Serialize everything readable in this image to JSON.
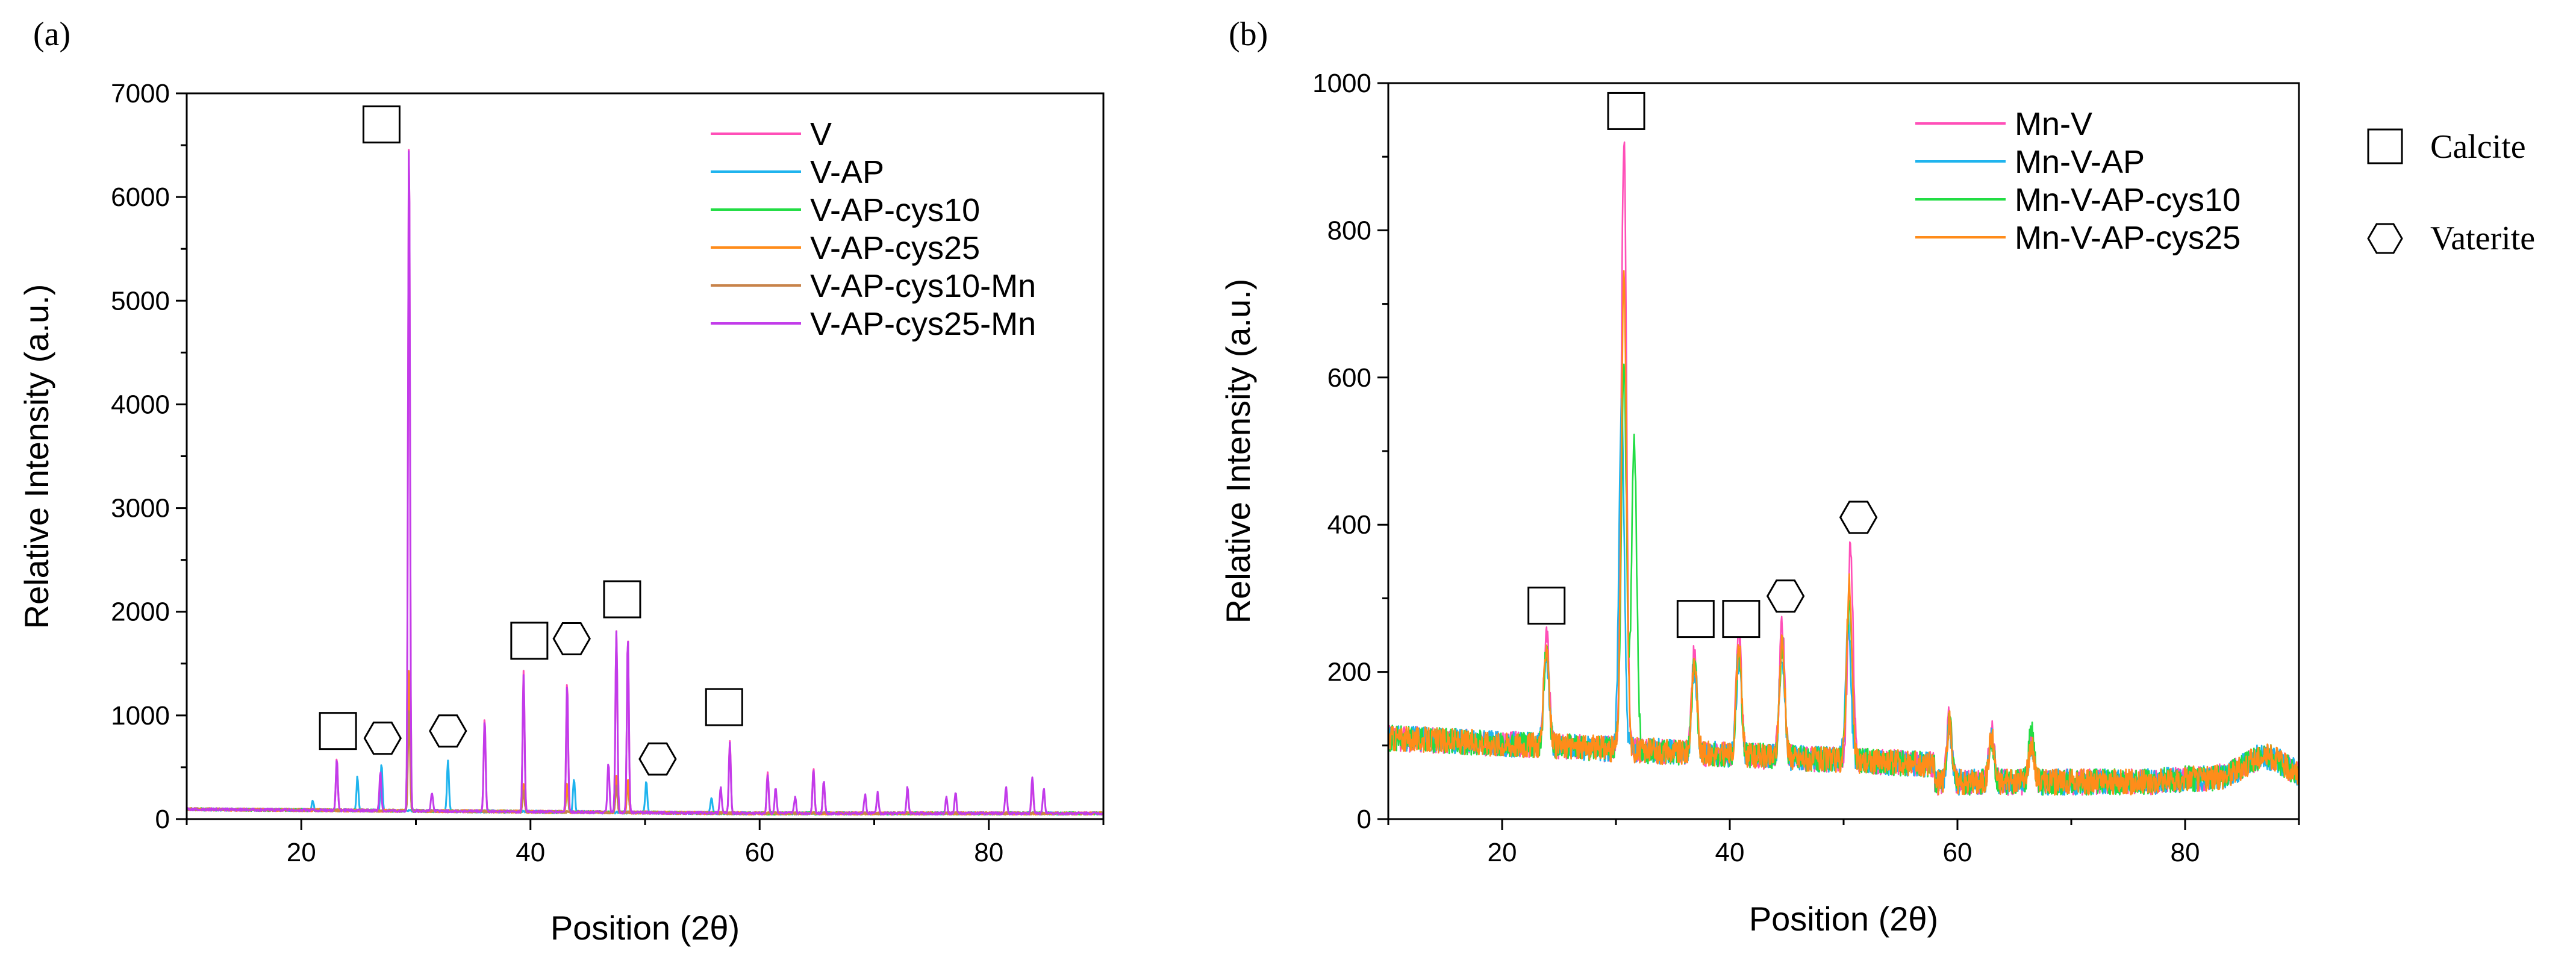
{
  "chart_data": [
    {
      "type": "line",
      "panel_label": "(a)",
      "xlabel": "Position (2θ)",
      "ylabel": "Relative Intensity (a.u.)",
      "xlim": [
        10,
        90
      ],
      "ylim": [
        0,
        7000
      ],
      "xticks": [
        20,
        40,
        60,
        80
      ],
      "yticks": [
        0,
        1000,
        2000,
        3000,
        4000,
        5000,
        6000,
        7000
      ],
      "grid": false,
      "legend_position": "top-right",
      "baseline": 100,
      "series": [
        {
          "name": "V",
          "color": "#ff4fb8",
          "peaks": [
            [
              23.1,
              500
            ],
            [
              29.4,
              6550
            ],
            [
              36.0,
              900
            ],
            [
              39.4,
              1350
            ],
            [
              43.2,
              1250
            ],
            [
              47.5,
              1750
            ],
            [
              48.5,
              1700
            ],
            [
              57.4,
              700
            ],
            [
              60.7,
              400
            ],
            [
              64.7,
              450
            ],
            [
              65.6,
              300
            ],
            [
              83.8,
              300
            ]
          ]
        },
        {
          "name": "V-AP",
          "color": "#1fb4ee",
          "peaks": [
            [
              21.0,
              100
            ],
            [
              24.9,
              330
            ],
            [
              27.0,
              450
            ],
            [
              32.8,
              480
            ],
            [
              43.8,
              330
            ],
            [
              50.1,
              300
            ],
            [
              55.8,
              150
            ]
          ]
        },
        {
          "name": "V-AP-cys10",
          "color": "#22dd44",
          "peaks": [
            [
              29.4,
              1200
            ],
            [
              39.4,
              250
            ],
            [
              43.2,
              250
            ],
            [
              47.5,
              300
            ],
            [
              48.5,
              280
            ]
          ]
        },
        {
          "name": "V-AP-cys25",
          "color": "#ff8c1a",
          "peaks": [
            [
              29.4,
              1400
            ],
            [
              39.4,
              280
            ],
            [
              43.2,
              270
            ],
            [
              47.5,
              350
            ],
            [
              48.5,
              330
            ]
          ]
        },
        {
          "name": "V-AP-cys10-Mn",
          "color": "#c8834a",
          "peaks": [
            [
              29.4,
              1000
            ],
            [
              39.4,
              200
            ],
            [
              47.5,
              250
            ]
          ]
        },
        {
          "name": "V-AP-cys25-Mn",
          "color": "#c23bea",
          "peaks": [
            [
              23.1,
              480
            ],
            [
              26.9,
              380
            ],
            [
              29.4,
              6550
            ],
            [
              31.4,
              180
            ],
            [
              36.0,
              880
            ],
            [
              39.4,
              1320
            ],
            [
              43.2,
              1220
            ],
            [
              46.8,
              480
            ],
            [
              47.5,
              1750
            ],
            [
              48.5,
              1700
            ],
            [
              56.6,
              250
            ],
            [
              57.4,
              680
            ],
            [
              60.7,
              380
            ],
            [
              61.4,
              250
            ],
            [
              63.1,
              160
            ],
            [
              64.7,
              430
            ],
            [
              65.6,
              320
            ],
            [
              69.2,
              180
            ],
            [
              70.3,
              200
            ],
            [
              72.9,
              250
            ],
            [
              76.3,
              160
            ],
            [
              77.1,
              200
            ],
            [
              81.5,
              250
            ],
            [
              83.8,
              350
            ],
            [
              84.8,
              250
            ]
          ]
        }
      ],
      "annotations": [
        {
          "symbol": "square",
          "x": 27.0,
          "y": 6700
        },
        {
          "symbol": "square",
          "x": 23.2,
          "y": 850
        },
        {
          "symbol": "hexagon",
          "x": 27.1,
          "y": 780
        },
        {
          "symbol": "hexagon",
          "x": 32.8,
          "y": 850
        },
        {
          "symbol": "square",
          "x": 39.9,
          "y": 1720
        },
        {
          "symbol": "hexagon",
          "x": 43.6,
          "y": 1740
        },
        {
          "symbol": "square",
          "x": 48.0,
          "y": 2120
        },
        {
          "symbol": "hexagon",
          "x": 51.1,
          "y": 580
        },
        {
          "symbol": "square",
          "x": 56.9,
          "y": 1080
        }
      ]
    },
    {
      "type": "line",
      "panel_label": "(b)",
      "xlabel": "Position (2θ)",
      "ylabel": "Relative Intensity (a.u.)",
      "xlim": [
        10,
        90
      ],
      "ylim": [
        0,
        1000
      ],
      "xticks": [
        20,
        40,
        60,
        80
      ],
      "yticks": [
        0,
        200,
        400,
        600,
        800,
        1000
      ],
      "grid": false,
      "legend_position": "top-right",
      "series": [
        {
          "name": "Mn-V",
          "color": "#ff4fb8",
          "peaks": [
            [
              23.9,
              160
            ],
            [
              30.7,
              830
            ],
            [
              36.9,
              140
            ],
            [
              40.8,
              170
            ],
            [
              44.6,
              180
            ],
            [
              50.6,
              290
            ],
            [
              59.3,
              90
            ],
            [
              63.0,
              70
            ],
            [
              66.5,
              60
            ]
          ]
        },
        {
          "name": "Mn-V-AP",
          "color": "#1fb4ee",
          "peaks": [
            [
              23.9,
              120
            ],
            [
              30.5,
              470
            ],
            [
              36.9,
              110
            ],
            [
              40.8,
              130
            ],
            [
              44.6,
              130
            ],
            [
              50.4,
              190
            ],
            [
              59.3,
              70
            ],
            [
              63.0,
              60
            ],
            [
              66.5,
              50
            ]
          ]
        },
        {
          "name": "Mn-V-AP-cys10",
          "color": "#22dd44",
          "peaks": [
            [
              23.9,
              130
            ],
            [
              30.7,
              520
            ],
            [
              31.6,
              420
            ],
            [
              36.9,
              120
            ],
            [
              40.8,
              140
            ],
            [
              44.6,
              150
            ],
            [
              50.5,
              220
            ],
            [
              59.3,
              80
            ],
            [
              63.0,
              60
            ],
            [
              66.5,
              70
            ]
          ]
        },
        {
          "name": "Mn-V-AP-cys25",
          "color": "#ff8c1a",
          "peaks": [
            [
              23.9,
              140
            ],
            [
              30.7,
              640
            ],
            [
              36.9,
              125
            ],
            [
              40.8,
              150
            ],
            [
              44.6,
              160
            ],
            [
              50.5,
              240
            ],
            [
              59.3,
              80
            ],
            [
              63.0,
              65
            ],
            [
              66.5,
              55
            ]
          ]
        }
      ],
      "annotations": [
        {
          "symbol": "square",
          "x": 30.9,
          "y": 962
        },
        {
          "symbol": "square",
          "x": 23.9,
          "y": 290
        },
        {
          "symbol": "square",
          "x": 37.0,
          "y": 272
        },
        {
          "symbol": "square",
          "x": 41.0,
          "y": 272
        },
        {
          "symbol": "hexagon",
          "x": 44.9,
          "y": 303
        },
        {
          "symbol": "hexagon",
          "x": 51.3,
          "y": 410
        }
      ],
      "key": [
        {
          "symbol": "square",
          "label": "Calcite"
        },
        {
          "symbol": "hexagon",
          "label": "Vaterite"
        }
      ]
    }
  ]
}
